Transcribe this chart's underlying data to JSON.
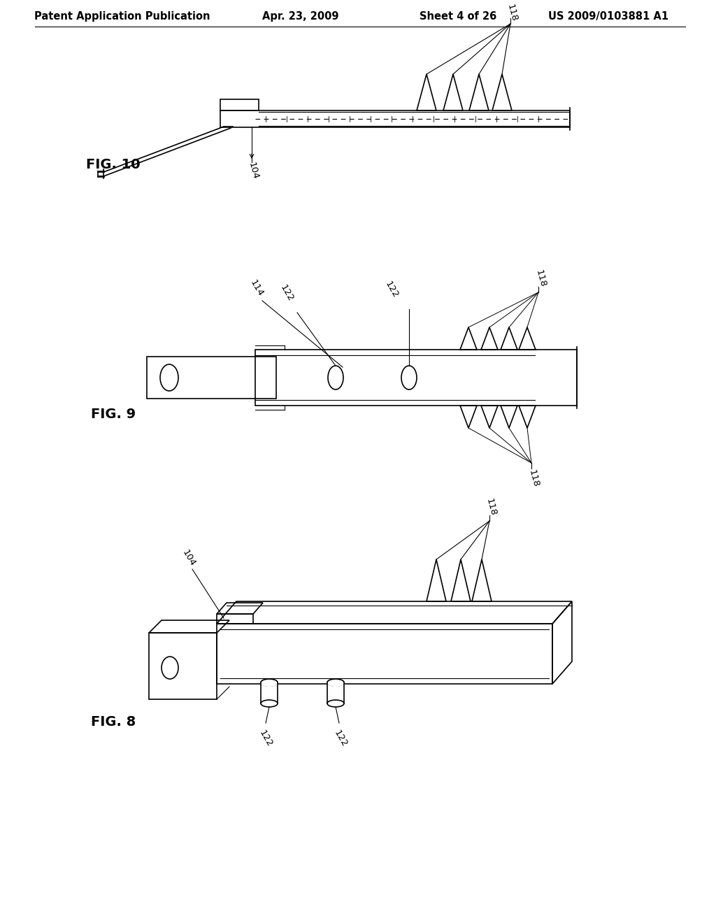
{
  "title": "Patent Application Publication",
  "date": "Apr. 23, 2009",
  "sheet": "Sheet 4 of 26",
  "patent": "US 2009/0103881 A1",
  "bg_color": "#ffffff",
  "line_color": "#000000",
  "header_fontsize": 10.5,
  "fig_label_fontsize": 14,
  "ref_fontsize": 9.5
}
